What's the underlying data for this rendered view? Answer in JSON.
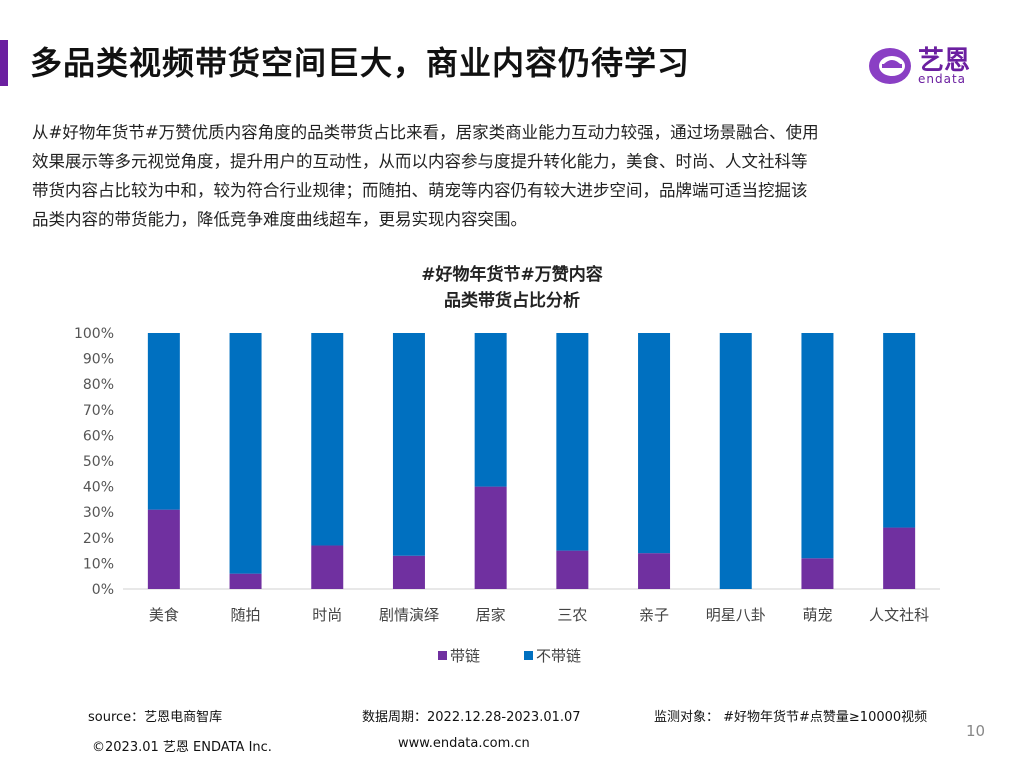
{
  "header": {
    "title": "多品类视频带货空间巨大，商业内容仍待学习",
    "logo_text": "艺恩",
    "logo_sub": "endata"
  },
  "intro": {
    "lines": [
      "从#好物年货节#万赞优质内容角度的品类带货占比来看，居家类商业能力互动力较强，通过场景融合、使用",
      "效果展示等多元视觉角度，提升用户的互动性，从而以内容参与度提升转化能力，美食、时尚、人文社科等",
      "带货内容占比较为中和，较为符合行业规律；而随拍、萌宠等内容仍有较大进步空间，品牌端可适当挖掘该",
      "品类内容的带货能力，降低竞争难度曲线超车，更易实现内容突围。"
    ]
  },
  "chart_data": {
    "type": "bar",
    "stacked": true,
    "title": "#好物年货节#万赞内容",
    "subtitle": "品类带货占比分析",
    "categories": [
      "美食",
      "随拍",
      "时尚",
      "剧情演绎",
      "居家",
      "三农",
      "亲子",
      "明星八卦",
      "萌宠",
      "人文社科"
    ],
    "series": [
      {
        "name": "带链",
        "color": "#7030a0",
        "values": [
          31,
          6,
          17,
          13,
          40,
          15,
          14,
          0,
          12,
          24
        ]
      },
      {
        "name": "不带链",
        "color": "#0070c0",
        "values": [
          69,
          94,
          83,
          87,
          60,
          85,
          86,
          100,
          88,
          76
        ]
      }
    ],
    "ylim": [
      0,
      100
    ],
    "yticks": [
      "0%",
      "10%",
      "20%",
      "30%",
      "40%",
      "50%",
      "60%",
      "70%",
      "80%",
      "90%",
      "100%"
    ],
    "grid": false,
    "legend_position": "bottom"
  },
  "footer": {
    "source": "source：艺恩电商智库",
    "period": "数据周期：2022.12.28-2023.01.07",
    "target": "监测对象：  #好物年货节#点赞量≥10000视频",
    "copyright": "©2023.01 艺恩 ENDATA Inc.",
    "website": "www.endata.com.cn",
    "page_number": "10"
  },
  "colors": {
    "accent": "#6b1fa0",
    "series1": "#7030a0",
    "series2": "#0070c0"
  }
}
